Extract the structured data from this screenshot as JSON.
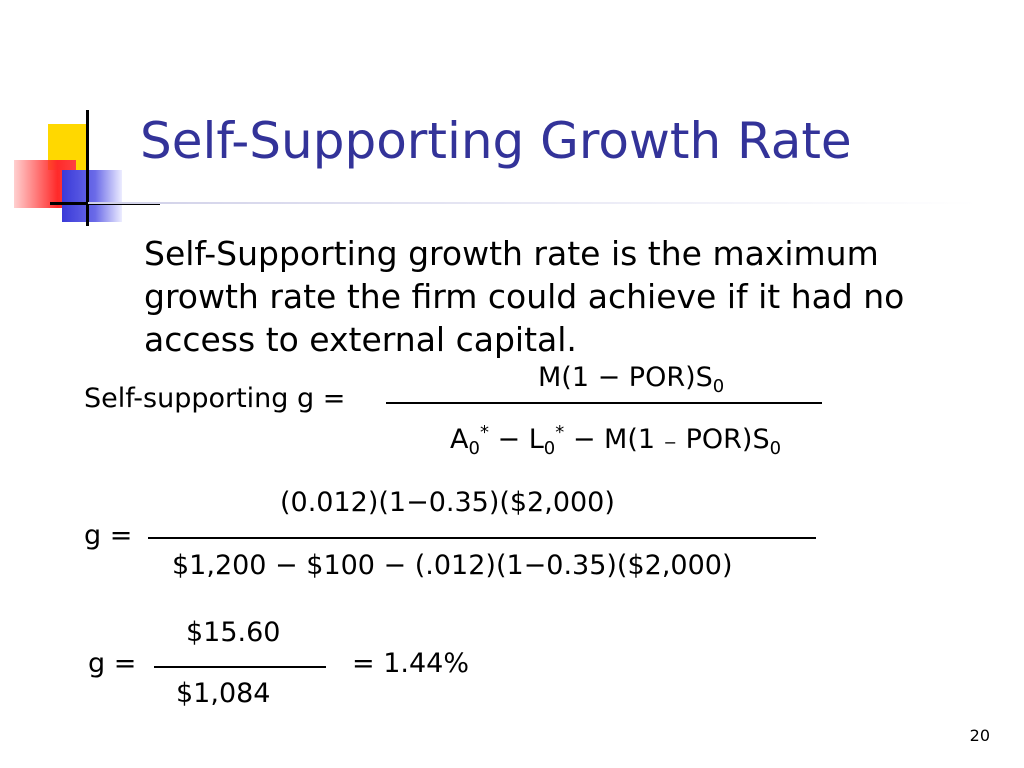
{
  "slide": {
    "title": "Self-Supporting Growth Rate",
    "body": "Self-Supporting growth rate is the maximum growth rate the firm could achieve if it had no access to external capital.",
    "page_number": "20"
  },
  "formula1": {
    "lhs": "Self-supporting g =",
    "numerator_main": "M(1 − POR)S",
    "numerator_sub": "0",
    "den_a": "A",
    "den_a_sub": "0",
    "den_a_sup": "*",
    "den_minus1": " − L",
    "den_l_sub": "0",
    "den_l_sup": "*",
    "den_mid": " − M(1 ",
    "den_small_minus": "−",
    "den_end": " POR)S",
    "den_s_sub": "0"
  },
  "formula2": {
    "lhs": "g =",
    "numerator": "(0.012)(1−0.35)($2,000)",
    "denominator": "$1,200 − $100 − (.012)(1−0.35)($2,000)"
  },
  "formula3": {
    "lhs": "g =",
    "numerator": "$15.60",
    "denominator": "$1,084",
    "result": "= 1.44%"
  }
}
